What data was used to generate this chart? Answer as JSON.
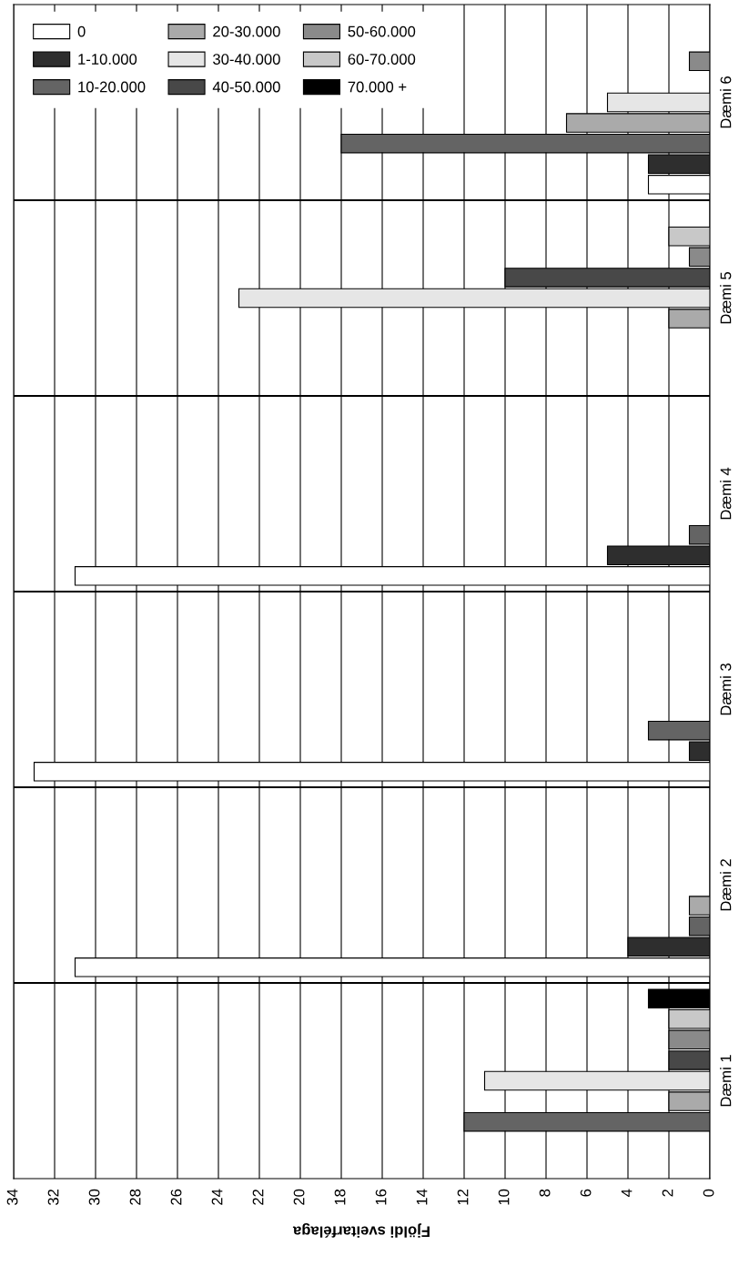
{
  "chart_data": {
    "type": "bar",
    "orientation": "horizontal",
    "categories": [
      "Dæmi 6",
      "Dæmi 5",
      "Dæmi 4",
      "Dæmi 3",
      "Dæmi 2",
      "Dæmi 1"
    ],
    "xlabel": "Fjöldi sveitarfélaga",
    "xlim": [
      34,
      0
    ],
    "xticks": [
      0,
      2,
      4,
      6,
      8,
      10,
      12,
      14,
      16,
      18,
      20,
      22,
      24,
      26,
      28,
      30,
      32,
      34
    ],
    "grid": true,
    "legend": "top left",
    "series": [
      {
        "name": "0",
        "color": "#ffffff",
        "values": [
          3,
          0,
          31,
          33,
          31,
          0
        ]
      },
      {
        "name": "1-10.000",
        "color": "#2e2e2e",
        "values": [
          3,
          0,
          5,
          1,
          4,
          0
        ]
      },
      {
        "name": "10-20.000",
        "color": "#646464",
        "values": [
          18,
          0,
          1,
          3,
          1,
          12
        ]
      },
      {
        "name": "20-30.000",
        "color": "#aaaaaa",
        "values": [
          7,
          2,
          0,
          0,
          1,
          2
        ]
      },
      {
        "name": "30-40.000",
        "color": "#e6e6e6",
        "values": [
          5,
          23,
          0,
          0,
          0,
          11
        ]
      },
      {
        "name": "40-50.000",
        "color": "#484848",
        "values": [
          0,
          10,
          0,
          0,
          0,
          2
        ]
      },
      {
        "name": "50-60.000",
        "color": "#8a8a8a",
        "values": [
          1,
          1,
          0,
          0,
          0,
          2
        ]
      },
      {
        "name": "60-70.000",
        "color": "#c8c8c8",
        "values": [
          0,
          2,
          0,
          0,
          0,
          2
        ]
      },
      {
        "name": "70.000 +",
        "color": "#000000",
        "values": [
          0,
          0,
          0,
          0,
          0,
          3
        ]
      }
    ]
  }
}
